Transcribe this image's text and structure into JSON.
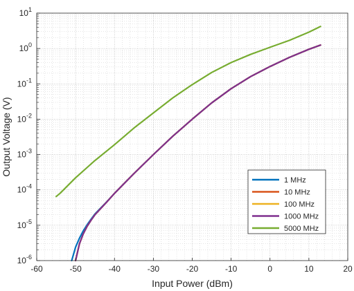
{
  "chart_data": {
    "type": "line",
    "xlabel": "Input Power (dBm)",
    "ylabel": "Output Voltage (V)",
    "xlim": [
      -60,
      20
    ],
    "ylim": [
      1e-06,
      10
    ],
    "yscale": "log",
    "grid": true,
    "minor_grid": true,
    "legend_position": "lower-right",
    "xticks": [
      "-60",
      "-50",
      "-40",
      "-30",
      "-20",
      "-10",
      "0",
      "10",
      "20"
    ],
    "yticks": [
      {
        "base": "10",
        "exp": "-6"
      },
      {
        "base": "10",
        "exp": "-5"
      },
      {
        "base": "10",
        "exp": "-4"
      },
      {
        "base": "10",
        "exp": "-3"
      },
      {
        "base": "10",
        "exp": "-2"
      },
      {
        "base": "10",
        "exp": "-1"
      },
      {
        "base": "10",
        "exp": "0"
      },
      {
        "base": "10",
        "exp": "1"
      }
    ],
    "series": [
      {
        "name": "1 MHz",
        "color": "#0072BD",
        "x": [
          -51,
          -50,
          -49,
          -48,
          -47,
          -46,
          -45,
          -42,
          -40,
          -35,
          -30,
          -25,
          -20,
          -15,
          -10,
          -5,
          0,
          5,
          10,
          13
        ],
        "y": [
          1e-06,
          2.4e-06,
          4.3e-06,
          7e-06,
          1.05e-05,
          1.5e-05,
          2.1e-05,
          4.6e-05,
          8e-05,
          0.00029,
          0.001,
          0.0033,
          0.01,
          0.029,
          0.073,
          0.16,
          0.31,
          0.56,
          0.95,
          1.25
        ]
      },
      {
        "name": "10 MHz",
        "color": "#D95319",
        "x": [
          -50,
          -49,
          -48,
          -47,
          -46,
          -45,
          -42,
          -40,
          -35,
          -30,
          -25,
          -20,
          -15,
          -10,
          -5,
          0,
          5,
          10,
          13
        ],
        "y": [
          1e-06,
          3e-06,
          5.8e-06,
          9.5e-06,
          1.4e-05,
          2e-05,
          4.5e-05,
          8e-05,
          0.00029,
          0.001,
          0.0033,
          0.01,
          0.029,
          0.073,
          0.16,
          0.31,
          0.56,
          0.95,
          1.25
        ]
      },
      {
        "name": "100 MHz",
        "color": "#EDB120",
        "x": [
          -50,
          -49,
          -48,
          -47,
          -46,
          -45,
          -42,
          -40,
          -35,
          -30,
          -25,
          -20,
          -15,
          -10,
          -5,
          0,
          5,
          10,
          13
        ],
        "y": [
          1e-06,
          3e-06,
          5.8e-06,
          9.5e-06,
          1.4e-05,
          2e-05,
          4.5e-05,
          8e-05,
          0.00029,
          0.001,
          0.0033,
          0.01,
          0.029,
          0.073,
          0.16,
          0.31,
          0.56,
          0.95,
          1.25
        ]
      },
      {
        "name": "1000 MHz",
        "color": "#7E2F8E",
        "x": [
          -50,
          -49,
          -48,
          -47,
          -46,
          -45,
          -42,
          -40,
          -35,
          -30,
          -25,
          -20,
          -15,
          -10,
          -5,
          0,
          5,
          10,
          13
        ],
        "y": [
          1e-06,
          3e-06,
          5.8e-06,
          9.5e-06,
          1.4e-05,
          2e-05,
          4.5e-05,
          8e-05,
          0.00029,
          0.001,
          0.0033,
          0.01,
          0.029,
          0.073,
          0.16,
          0.31,
          0.56,
          0.95,
          1.25
        ]
      },
      {
        "name": "5000 MHz",
        "color": "#77AC30",
        "x": [
          -55,
          -54,
          -50,
          -45,
          -40,
          -35,
          -30,
          -25,
          -20,
          -15,
          -10,
          -5,
          0,
          5,
          10,
          13
        ],
        "y": [
          6.5e-05,
          8e-05,
          0.00022,
          0.00068,
          0.0019,
          0.0056,
          0.015,
          0.04,
          0.095,
          0.21,
          0.4,
          0.68,
          1.08,
          1.7,
          2.9,
          4.2
        ]
      }
    ]
  }
}
